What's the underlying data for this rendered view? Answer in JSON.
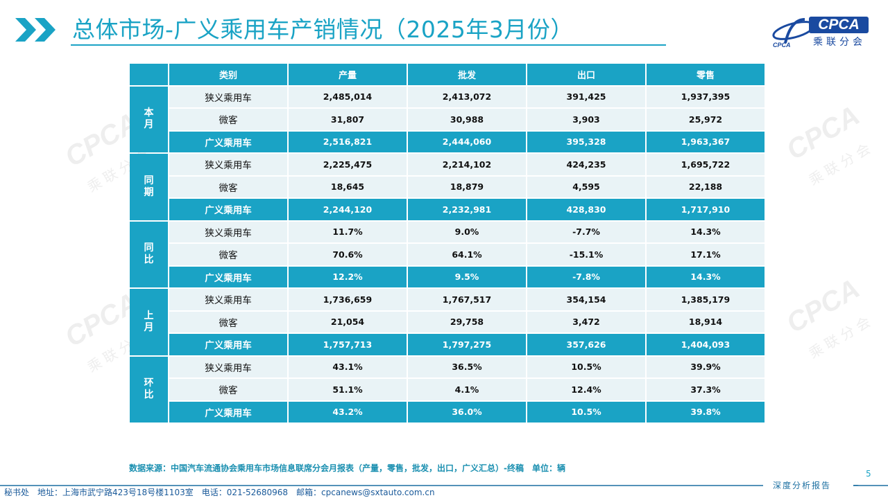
{
  "header": {
    "title": "总体市场-广义乘用车产销情况（2025年3月份）",
    "logo_text": "CPCA",
    "logo_sub": "乘联分会",
    "logo_small": "CPCA"
  },
  "table": {
    "headers": [
      "类别",
      "产量",
      "批发",
      "出口",
      "零售"
    ],
    "groups": [
      {
        "label": "本月",
        "rows": [
          {
            "category": "狭义乘用车",
            "values": [
              "2,485,014",
              "2,413,072",
              "391,425",
              "1,937,395"
            ]
          },
          {
            "category": "微客",
            "values": [
              "31,807",
              "30,988",
              "3,903",
              "25,972"
            ]
          },
          {
            "category": "广义乘用车",
            "values": [
              "2,516,821",
              "2,444,060",
              "395,328",
              "1,963,367"
            ]
          }
        ]
      },
      {
        "label": "同期",
        "rows": [
          {
            "category": "狭义乘用车",
            "values": [
              "2,225,475",
              "2,214,102",
              "424,235",
              "1,695,722"
            ]
          },
          {
            "category": "微客",
            "values": [
              "18,645",
              "18,879",
              "4,595",
              "22,188"
            ]
          },
          {
            "category": "广义乘用车",
            "values": [
              "2,244,120",
              "2,232,981",
              "428,830",
              "1,717,910"
            ]
          }
        ]
      },
      {
        "label": "同比",
        "rows": [
          {
            "category": "狭义乘用车",
            "values": [
              "11.7%",
              "9.0%",
              "-7.7%",
              "14.3%"
            ]
          },
          {
            "category": "微客",
            "values": [
              "70.6%",
              "64.1%",
              "-15.1%",
              "17.1%"
            ]
          },
          {
            "category": "广义乘用车",
            "values": [
              "12.2%",
              "9.5%",
              "-7.8%",
              "14.3%"
            ]
          }
        ]
      },
      {
        "label": "上月",
        "rows": [
          {
            "category": "狭义乘用车",
            "values": [
              "1,736,659",
              "1,767,517",
              "354,154",
              "1,385,179"
            ]
          },
          {
            "category": "微客",
            "values": [
              "21,054",
              "29,758",
              "3,472",
              "18,914"
            ]
          },
          {
            "category": "广义乘用车",
            "values": [
              "1,757,713",
              "1,797,275",
              "357,626",
              "1,404,093"
            ]
          }
        ]
      },
      {
        "label": "环比",
        "rows": [
          {
            "category": "狭义乘用车",
            "values": [
              "43.1%",
              "36.5%",
              "10.5%",
              "39.9%"
            ]
          },
          {
            "category": "微客",
            "values": [
              "51.1%",
              "4.1%",
              "12.4%",
              "37.3%"
            ]
          },
          {
            "category": "广义乘用车",
            "values": [
              "43.2%",
              "36.0%",
              "10.5%",
              "39.8%"
            ]
          }
        ]
      }
    ]
  },
  "footer": {
    "source": "数据来源：中国汽车流通协会乘用车市场信息联席分会月报表（产量，零售，批发，出口，广义汇总）-终稿　单位：辆",
    "page_number": "5",
    "tag": "深度分析报告",
    "contact": "秘书处　地址：上海市武宁路423号18号楼1103室　电话：021-52680968　邮箱：cpcanews@sxtauto.com.cn"
  },
  "colors": {
    "accent": "#1aa3c5",
    "light_row": "#e9f3f6",
    "brand_blue": "#1a4aa0"
  }
}
